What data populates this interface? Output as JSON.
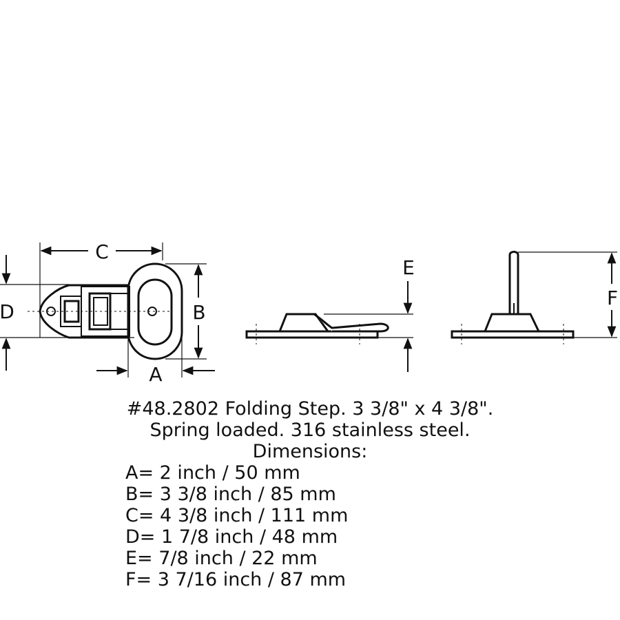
{
  "labels": {
    "A": "A",
    "B": "B",
    "C": "C",
    "D": "D",
    "E": "E",
    "F": "F"
  },
  "caption": {
    "line1": "#48.2802 Folding Step. 3 3/8\" x 4 3/8\".",
    "line2": "Spring loaded. 316 stainless steel.",
    "line3": "Dimensions:"
  },
  "dimensions": [
    "A= 2 inch / 50 mm",
    "B= 3 3/8 inch / 85 mm",
    "C= 4 3/8 inch / 111 mm",
    "D= 1 7/8 inch / 48 mm",
    "E= 7/8 inch / 22 mm",
    "F= 3 7/16 inch / 87 mm"
  ]
}
